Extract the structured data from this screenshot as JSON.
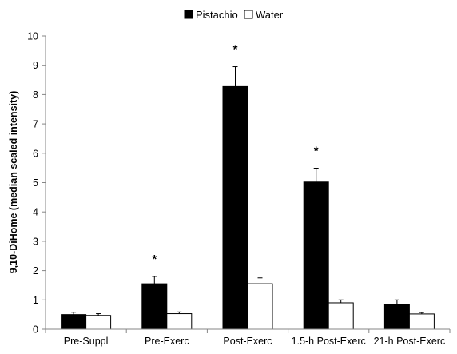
{
  "chart_data": {
    "type": "bar",
    "title": "",
    "xlabel": "",
    "ylabel": "9,10-DiHome (median scaled intensity)",
    "ylim": [
      0,
      10
    ],
    "yticks": [
      0,
      1,
      2,
      3,
      4,
      5,
      6,
      7,
      8,
      9,
      10
    ],
    "grid": false,
    "legend_position": "top-center",
    "categories": [
      "Pre-Suppl",
      "Pre-Exerc",
      "Post-Exerc",
      "1.5-h Post-Exerc",
      "21-h Post-Exerc"
    ],
    "series": [
      {
        "name": "Pistachio",
        "color": "#000000",
        "values": [
          0.5,
          1.55,
          8.3,
          5.02,
          0.85
        ],
        "errors": [
          0.08,
          0.25,
          0.65,
          0.47,
          0.15
        ]
      },
      {
        "name": "Water",
        "color": "#ffffff",
        "values": [
          0.47,
          0.53,
          1.55,
          0.9,
          0.52
        ],
        "errors": [
          0.06,
          0.06,
          0.2,
          0.1,
          0.05
        ]
      }
    ],
    "annotations": [
      {
        "category": "Pre-Exerc",
        "text": "*"
      },
      {
        "category": "Post-Exerc",
        "text": "*"
      },
      {
        "category": "1.5-h Post-Exerc",
        "text": "*"
      }
    ]
  }
}
